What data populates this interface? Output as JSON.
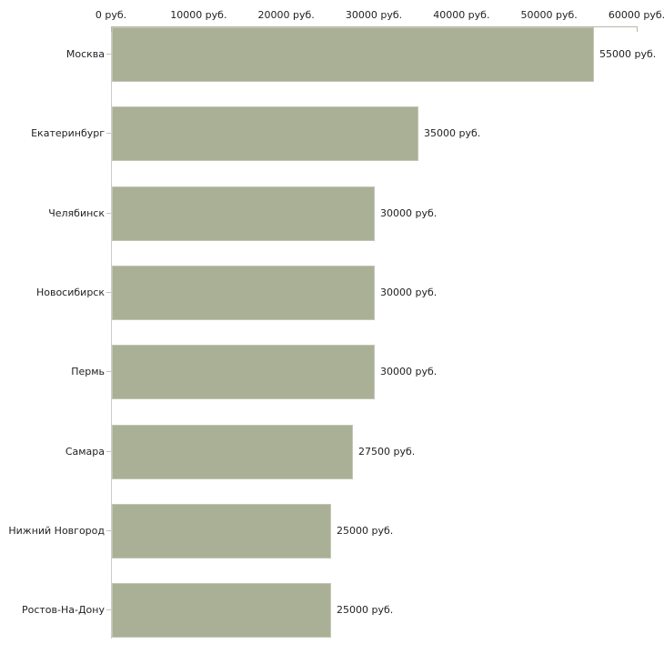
{
  "chart_data": {
    "type": "bar",
    "orientation": "horizontal",
    "title": "",
    "categories": [
      "Москва",
      "Екатеринбург",
      "Челябинск",
      "Новосибирск",
      "Пермь",
      "Самара",
      "Нижний Новгород",
      "Ростов-На-Дону"
    ],
    "values": [
      55000,
      35000,
      30000,
      30000,
      30000,
      27500,
      25000,
      25000
    ],
    "value_labels": [
      "55000 руб.",
      "35000 руб.",
      "30000 руб.",
      "30000 руб.",
      "30000 руб.",
      "27500 руб.",
      "25000 руб.",
      "25000 руб."
    ],
    "x_axis": {
      "position": "top",
      "range": [
        0,
        60000
      ],
      "tick_values": [
        0,
        10000,
        20000,
        30000,
        40000,
        50000,
        60000
      ],
      "tick_labels": [
        "0 руб.",
        "10000 руб.",
        "20000 руб.",
        "30000 руб.",
        "40000 руб.",
        "50000 руб.",
        "60000 руб."
      ]
    },
    "ylabel": "",
    "xlabel": "",
    "legend": false,
    "grid": false,
    "colors": {
      "bar_fill": "#aab095",
      "bar_border": "#c3c5b6",
      "axis_line": "#b9b6aa",
      "left_axis_line": "#cdcdc8",
      "text": "#222222",
      "background": "#ffffff"
    }
  }
}
